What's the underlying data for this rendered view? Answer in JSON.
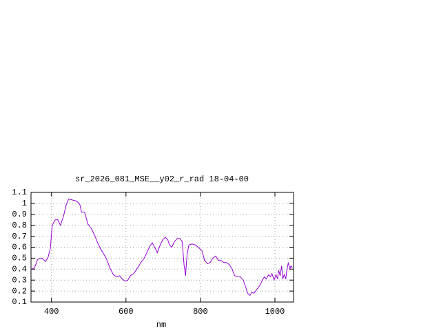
{
  "chart_data": {
    "type": "line",
    "title": "sr_2026_081_MSE__y02_r_rad 18-04-00",
    "x_label": "nm",
    "x": [
      345,
      354,
      363,
      373,
      378,
      384,
      391,
      397,
      402,
      410,
      417,
      424,
      432,
      439,
      446,
      457,
      468,
      476,
      481,
      489,
      498,
      507,
      517,
      524,
      531,
      540,
      548,
      557,
      566,
      575,
      583,
      590,
      598,
      605,
      612,
      621,
      631,
      640,
      649,
      656,
      664,
      671,
      677,
      684,
      692,
      699,
      706,
      712,
      717,
      723,
      730,
      738,
      745,
      751,
      756,
      760,
      764,
      769,
      778,
      787,
      797,
      804,
      811,
      819,
      826,
      833,
      841,
      848,
      855,
      863,
      870,
      878,
      885,
      892,
      900,
      907,
      915,
      920,
      927,
      933,
      938,
      944,
      950,
      955,
      961,
      966,
      972,
      977,
      983,
      988,
      992,
      998,
      1003,
      1007,
      1010,
      1014,
      1018,
      1021,
      1025,
      1029,
      1032,
      1036,
      1040,
      1043,
      1047
    ],
    "series": [
      {
        "color": "#9400d3",
        "values": [
          0.4,
          0.41,
          0.49,
          0.5,
          0.49,
          0.47,
          0.51,
          0.59,
          0.8,
          0.85,
          0.85,
          0.8,
          0.88,
          0.98,
          1.04,
          1.03,
          1.02,
          0.99,
          0.92,
          0.92,
          0.81,
          0.77,
          0.7,
          0.64,
          0.59,
          0.54,
          0.49,
          0.41,
          0.35,
          0.33,
          0.34,
          0.31,
          0.29,
          0.3,
          0.34,
          0.36,
          0.41,
          0.46,
          0.5,
          0.55,
          0.61,
          0.64,
          0.6,
          0.55,
          0.62,
          0.67,
          0.69,
          0.67,
          0.62,
          0.6,
          0.65,
          0.68,
          0.68,
          0.65,
          0.44,
          0.34,
          0.53,
          0.62,
          0.63,
          0.62,
          0.59,
          0.57,
          0.48,
          0.45,
          0.46,
          0.5,
          0.52,
          0.48,
          0.48,
          0.46,
          0.46,
          0.44,
          0.4,
          0.34,
          0.33,
          0.33,
          0.3,
          0.25,
          0.18,
          0.16,
          0.19,
          0.18,
          0.21,
          0.23,
          0.26,
          0.3,
          0.33,
          0.31,
          0.35,
          0.33,
          0.36,
          0.3,
          0.35,
          0.31,
          0.39,
          0.34,
          0.43,
          0.31,
          0.35,
          0.31,
          0.39,
          0.46,
          0.4,
          0.43,
          0.41
        ]
      }
    ],
    "xlim": [
      345,
      1050
    ],
    "xticks": [
      400,
      600,
      800,
      1000
    ],
    "ylim": [
      0.1,
      1.1
    ],
    "yticks": [
      0.1,
      0.2,
      0.3,
      0.4,
      0.5,
      0.6,
      0.7,
      0.8,
      0.9,
      1,
      1.1
    ],
    "grid": true
  }
}
